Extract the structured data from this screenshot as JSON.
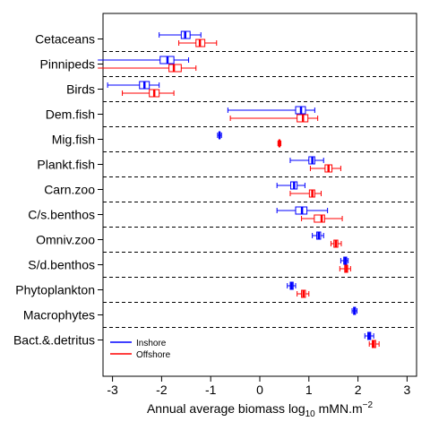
{
  "chart_data": {
    "type": "boxplot",
    "orientation": "horizontal",
    "xlabel": {
      "prefix": "Annual average biomass log",
      "sub": "10",
      "mid": " mMN.m",
      "sup": "−2"
    },
    "xlim": [
      -3.3,
      3.3
    ],
    "xticks": [
      -3,
      -2,
      -1,
      0,
      1,
      2,
      3
    ],
    "xtick_labels": [
      "-3",
      "-2",
      "-1",
      "0",
      "1",
      "2",
      "3"
    ],
    "categories": [
      "Cetaceans",
      "Pinnipeds",
      "Birds",
      "Dem.fish",
      "Mig.fish",
      "Plankt.fish",
      "Carn.zoo",
      "C/s.benthos",
      "Omniv.zoo",
      "S/d.benthos",
      "Phytoplankton",
      "Macrophytes",
      "Bact.&.detritus"
    ],
    "legend": {
      "position": "bottom-left",
      "entries": [
        {
          "name": "Inshore",
          "color": "#0000ff"
        },
        {
          "name": "Offshore",
          "color": "#ff0000"
        }
      ]
    },
    "series": [
      {
        "name": "Inshore",
        "color": "#0000ff",
        "boxes": [
          {
            "category": "Cetaceans",
            "min": -2.05,
            "q1": -1.6,
            "median": -1.52,
            "q3": -1.42,
            "max": -1.2
          },
          {
            "category": "Pinnipeds",
            "min": -3.3,
            "q1": -2.03,
            "median": -1.88,
            "q3": -1.75,
            "max": -1.45
          },
          {
            "category": "Birds",
            "min": -3.1,
            "q1": -2.45,
            "median": -2.35,
            "q3": -2.25,
            "max": -2.05
          },
          {
            "category": "Dem.fish",
            "min": -0.65,
            "q1": 0.73,
            "median": 0.84,
            "q3": 0.93,
            "max": 1.12
          },
          {
            "category": "Mig.fish",
            "min": -0.86,
            "q1": -0.83,
            "median": -0.82,
            "q3": -0.81,
            "max": -0.78
          },
          {
            "category": "Plankt.fish",
            "min": 0.62,
            "q1": 1.0,
            "median": 1.07,
            "q3": 1.12,
            "max": 1.3
          },
          {
            "category": "Carn.zoo",
            "min": 0.35,
            "q1": 0.63,
            "median": 0.7,
            "q3": 0.76,
            "max": 0.92
          },
          {
            "category": "C/s.benthos",
            "min": 0.35,
            "q1": 0.73,
            "median": 0.86,
            "q3": 0.96,
            "max": 1.38
          },
          {
            "category": "Omniv.zoo",
            "min": 1.07,
            "q1": 1.16,
            "median": 1.2,
            "q3": 1.24,
            "max": 1.3
          },
          {
            "category": "S/d.benthos",
            "min": 1.65,
            "q1": 1.71,
            "median": 1.74,
            "q3": 1.77,
            "max": 1.8
          },
          {
            "category": "Phytoplankton",
            "min": 0.56,
            "q1": 0.62,
            "median": 0.65,
            "q3": 0.68,
            "max": 0.73
          },
          {
            "category": "Macrophytes",
            "min": 1.88,
            "q1": 1.91,
            "median": 1.93,
            "q3": 1.95,
            "max": 1.98
          },
          {
            "category": "Bact.&.detritus",
            "min": 2.14,
            "q1": 2.2,
            "median": 2.23,
            "q3": 2.26,
            "max": 2.32
          }
        ]
      },
      {
        "name": "Offshore",
        "color": "#ff0000",
        "boxes": [
          {
            "category": "Cetaceans",
            "min": -1.65,
            "q1": -1.3,
            "median": -1.22,
            "q3": -1.12,
            "max": -0.88
          },
          {
            "category": "Pinnipeds",
            "min": -3.3,
            "q1": -1.85,
            "median": -1.75,
            "q3": -1.6,
            "max": -1.3
          },
          {
            "category": "Birds",
            "min": -2.8,
            "q1": -2.25,
            "median": -2.15,
            "q3": -2.05,
            "max": -1.75
          },
          {
            "category": "Dem.fish",
            "min": -0.6,
            "q1": 0.76,
            "median": 0.88,
            "q3": 0.98,
            "max": 1.18
          },
          {
            "category": "Mig.fish",
            "min": 0.37,
            "q1": 0.39,
            "median": 0.4,
            "q3": 0.41,
            "max": 0.43
          },
          {
            "category": "Plankt.fish",
            "min": 1.03,
            "q1": 1.33,
            "median": 1.4,
            "q3": 1.47,
            "max": 1.65
          },
          {
            "category": "Carn.zoo",
            "min": 0.62,
            "q1": 1.01,
            "median": 1.07,
            "q3": 1.12,
            "max": 1.25
          },
          {
            "category": "C/s.benthos",
            "min": 0.85,
            "q1": 1.11,
            "median": 1.26,
            "q3": 1.32,
            "max": 1.68
          },
          {
            "category": "Omniv.zoo",
            "min": 1.45,
            "q1": 1.51,
            "median": 1.55,
            "q3": 1.59,
            "max": 1.66
          },
          {
            "category": "S/d.benthos",
            "min": 1.63,
            "q1": 1.73,
            "median": 1.76,
            "q3": 1.79,
            "max": 1.85
          },
          {
            "category": "Phytoplankton",
            "min": 0.76,
            "q1": 0.85,
            "median": 0.89,
            "q3": 0.93,
            "max": 1.0
          },
          {
            "category": "Bact.&.detritus",
            "min": 2.23,
            "q1": 2.29,
            "median": 2.32,
            "q3": 2.36,
            "max": 2.43
          }
        ]
      }
    ]
  }
}
